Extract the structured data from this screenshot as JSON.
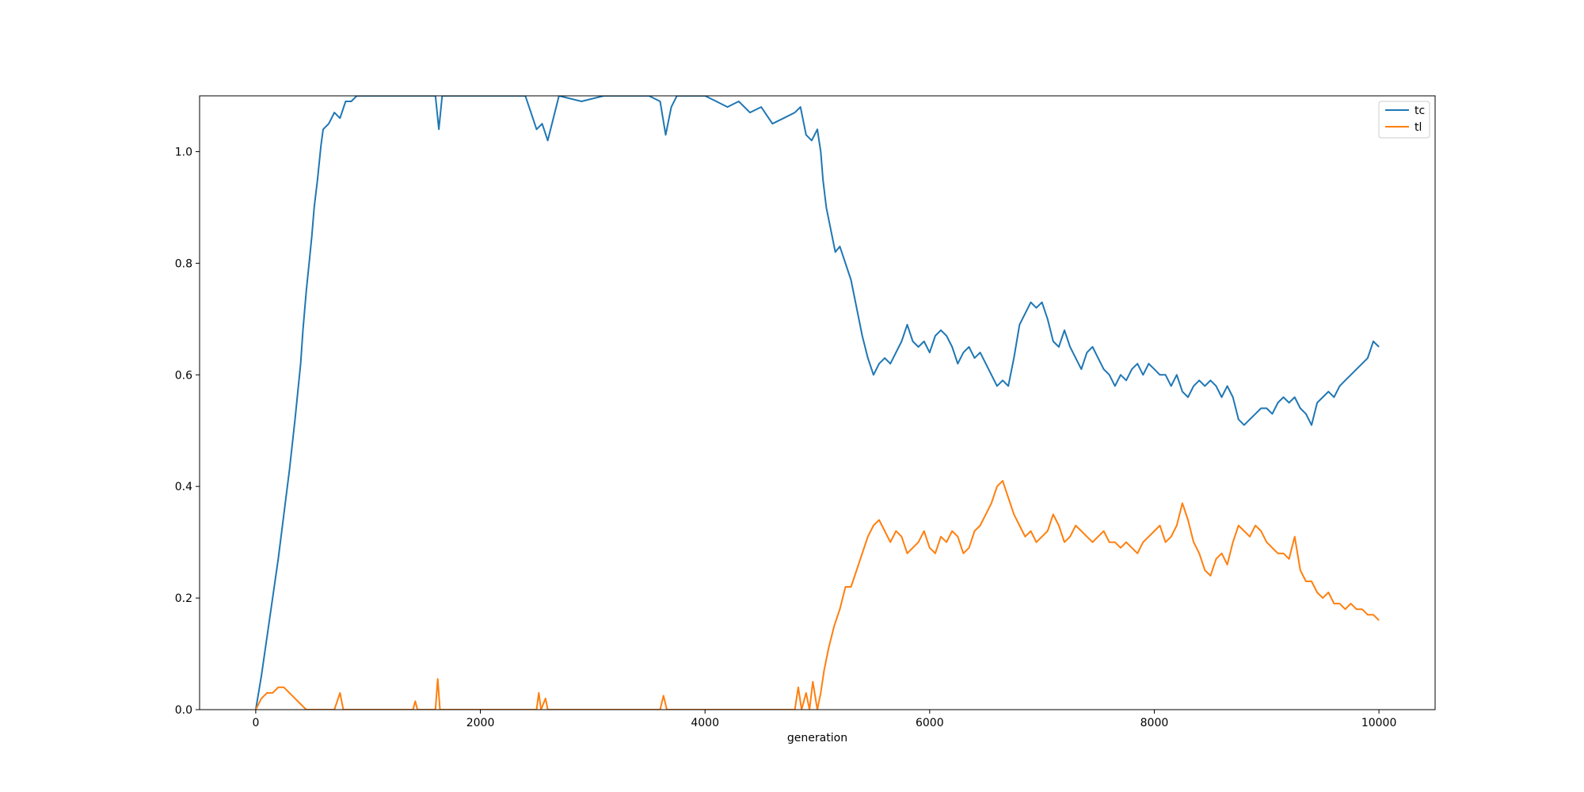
{
  "chart_data": {
    "type": "line",
    "title": "",
    "xlabel": "generation",
    "ylabel": "",
    "xlim": [
      -500,
      10500
    ],
    "ylim": [
      0,
      1.1
    ],
    "xticks": [
      0,
      2000,
      4000,
      6000,
      8000,
      10000
    ],
    "yticks": [
      0.0,
      0.2,
      0.4,
      0.6,
      0.8,
      1.0
    ],
    "xtick_labels": [
      "0",
      "2000",
      "4000",
      "6000",
      "8000",
      "10000"
    ],
    "ytick_labels": [
      "0.0",
      "0.2",
      "0.4",
      "0.6",
      "0.8",
      "1.0"
    ],
    "grid": false,
    "legend_position": "top-right",
    "series": [
      {
        "name": "tc",
        "color": "#1f77b4",
        "points": [
          [
            0,
            0.0
          ],
          [
            50,
            0.06
          ],
          [
            100,
            0.13
          ],
          [
            150,
            0.2
          ],
          [
            200,
            0.27
          ],
          [
            250,
            0.35
          ],
          [
            300,
            0.43
          ],
          [
            350,
            0.52
          ],
          [
            400,
            0.62
          ],
          [
            420,
            0.68
          ],
          [
            450,
            0.75
          ],
          [
            480,
            0.81
          ],
          [
            500,
            0.85
          ],
          [
            520,
            0.9
          ],
          [
            550,
            0.95
          ],
          [
            580,
            1.01
          ],
          [
            600,
            1.04
          ],
          [
            650,
            1.05
          ],
          [
            700,
            1.07
          ],
          [
            750,
            1.06
          ],
          [
            800,
            1.09
          ],
          [
            850,
            1.09
          ],
          [
            900,
            1.1
          ],
          [
            1000,
            1.1
          ],
          [
            1200,
            1.1
          ],
          [
            1400,
            1.1
          ],
          [
            1600,
            1.1
          ],
          [
            1630,
            1.04
          ],
          [
            1660,
            1.1
          ],
          [
            1800,
            1.1
          ],
          [
            2000,
            1.1
          ],
          [
            2200,
            1.1
          ],
          [
            2400,
            1.1
          ],
          [
            2450,
            1.07
          ],
          [
            2500,
            1.04
          ],
          [
            2550,
            1.05
          ],
          [
            2600,
            1.02
          ],
          [
            2650,
            1.06
          ],
          [
            2700,
            1.1
          ],
          [
            2900,
            1.09
          ],
          [
            3100,
            1.1
          ],
          [
            3300,
            1.1
          ],
          [
            3500,
            1.1
          ],
          [
            3600,
            1.09
          ],
          [
            3650,
            1.03
          ],
          [
            3700,
            1.08
          ],
          [
            3750,
            1.1
          ],
          [
            3900,
            1.1
          ],
          [
            4000,
            1.1
          ],
          [
            4100,
            1.09
          ],
          [
            4200,
            1.08
          ],
          [
            4300,
            1.09
          ],
          [
            4400,
            1.07
          ],
          [
            4500,
            1.08
          ],
          [
            4600,
            1.05
          ],
          [
            4700,
            1.06
          ],
          [
            4800,
            1.07
          ],
          [
            4850,
            1.08
          ],
          [
            4900,
            1.03
          ],
          [
            4950,
            1.02
          ],
          [
            5000,
            1.04
          ],
          [
            5030,
            1.0
          ],
          [
            5050,
            0.95
          ],
          [
            5080,
            0.9
          ],
          [
            5120,
            0.86
          ],
          [
            5160,
            0.82
          ],
          [
            5200,
            0.83
          ],
          [
            5250,
            0.8
          ],
          [
            5300,
            0.77
          ],
          [
            5350,
            0.72
          ],
          [
            5400,
            0.67
          ],
          [
            5450,
            0.63
          ],
          [
            5500,
            0.6
          ],
          [
            5550,
            0.62
          ],
          [
            5600,
            0.63
          ],
          [
            5650,
            0.62
          ],
          [
            5700,
            0.64
          ],
          [
            5750,
            0.66
          ],
          [
            5800,
            0.69
          ],
          [
            5850,
            0.66
          ],
          [
            5900,
            0.65
          ],
          [
            5950,
            0.66
          ],
          [
            6000,
            0.64
          ],
          [
            6050,
            0.67
          ],
          [
            6100,
            0.68
          ],
          [
            6150,
            0.67
          ],
          [
            6200,
            0.65
          ],
          [
            6250,
            0.62
          ],
          [
            6300,
            0.64
          ],
          [
            6350,
            0.65
          ],
          [
            6400,
            0.63
          ],
          [
            6450,
            0.64
          ],
          [
            6500,
            0.62
          ],
          [
            6550,
            0.6
          ],
          [
            6600,
            0.58
          ],
          [
            6650,
            0.59
          ],
          [
            6700,
            0.58
          ],
          [
            6750,
            0.63
          ],
          [
            6800,
            0.69
          ],
          [
            6850,
            0.71
          ],
          [
            6900,
            0.73
          ],
          [
            6950,
            0.72
          ],
          [
            7000,
            0.73
          ],
          [
            7050,
            0.7
          ],
          [
            7100,
            0.66
          ],
          [
            7150,
            0.65
          ],
          [
            7200,
            0.68
          ],
          [
            7250,
            0.65
          ],
          [
            7300,
            0.63
          ],
          [
            7350,
            0.61
          ],
          [
            7400,
            0.64
          ],
          [
            7450,
            0.65
          ],
          [
            7500,
            0.63
          ],
          [
            7550,
            0.61
          ],
          [
            7600,
            0.6
          ],
          [
            7650,
            0.58
          ],
          [
            7700,
            0.6
          ],
          [
            7750,
            0.59
          ],
          [
            7800,
            0.61
          ],
          [
            7850,
            0.62
          ],
          [
            7900,
            0.6
          ],
          [
            7950,
            0.62
          ],
          [
            8000,
            0.61
          ],
          [
            8050,
            0.6
          ],
          [
            8100,
            0.6
          ],
          [
            8150,
            0.58
          ],
          [
            8200,
            0.6
          ],
          [
            8250,
            0.57
          ],
          [
            8300,
            0.56
          ],
          [
            8350,
            0.58
          ],
          [
            8400,
            0.59
          ],
          [
            8450,
            0.58
          ],
          [
            8500,
            0.59
          ],
          [
            8550,
            0.58
          ],
          [
            8600,
            0.56
          ],
          [
            8650,
            0.58
          ],
          [
            8700,
            0.56
          ],
          [
            8750,
            0.52
          ],
          [
            8800,
            0.51
          ],
          [
            8850,
            0.52
          ],
          [
            8900,
            0.53
          ],
          [
            8950,
            0.54
          ],
          [
            9000,
            0.54
          ],
          [
            9050,
            0.53
          ],
          [
            9100,
            0.55
          ],
          [
            9150,
            0.56
          ],
          [
            9200,
            0.55
          ],
          [
            9250,
            0.56
          ],
          [
            9300,
            0.54
          ],
          [
            9350,
            0.53
          ],
          [
            9400,
            0.51
          ],
          [
            9450,
            0.55
          ],
          [
            9500,
            0.56
          ],
          [
            9550,
            0.57
          ],
          [
            9600,
            0.56
          ],
          [
            9650,
            0.58
          ],
          [
            9700,
            0.59
          ],
          [
            9750,
            0.6
          ],
          [
            9800,
            0.61
          ],
          [
            9850,
            0.62
          ],
          [
            9900,
            0.63
          ],
          [
            9950,
            0.66
          ],
          [
            10000,
            0.65
          ]
        ]
      },
      {
        "name": "tl",
        "color": "#ff7f0e",
        "points": [
          [
            0,
            0.0
          ],
          [
            50,
            0.02
          ],
          [
            100,
            0.03
          ],
          [
            150,
            0.03
          ],
          [
            200,
            0.04
          ],
          [
            250,
            0.04
          ],
          [
            300,
            0.03
          ],
          [
            350,
            0.02
          ],
          [
            400,
            0.01
          ],
          [
            450,
            0.0
          ],
          [
            600,
            0.0
          ],
          [
            700,
            0.0
          ],
          [
            750,
            0.03
          ],
          [
            780,
            0.0
          ],
          [
            1000,
            0.0
          ],
          [
            1400,
            0.0
          ],
          [
            1420,
            0.015
          ],
          [
            1440,
            0.0
          ],
          [
            1600,
            0.0
          ],
          [
            1620,
            0.055
          ],
          [
            1640,
            0.0
          ],
          [
            2000,
            0.0
          ],
          [
            2500,
            0.0
          ],
          [
            2520,
            0.03
          ],
          [
            2540,
            0.0
          ],
          [
            2580,
            0.02
          ],
          [
            2600,
            0.0
          ],
          [
            3600,
            0.0
          ],
          [
            3630,
            0.025
          ],
          [
            3660,
            0.0
          ],
          [
            4800,
            0.0
          ],
          [
            4830,
            0.04
          ],
          [
            4860,
            0.0
          ],
          [
            4900,
            0.03
          ],
          [
            4930,
            0.0
          ],
          [
            4960,
            0.05
          ],
          [
            5000,
            0.0
          ],
          [
            5030,
            0.03
          ],
          [
            5060,
            0.07
          ],
          [
            5100,
            0.11
          ],
          [
            5150,
            0.15
          ],
          [
            5200,
            0.18
          ],
          [
            5250,
            0.22
          ],
          [
            5300,
            0.22
          ],
          [
            5350,
            0.25
          ],
          [
            5400,
            0.28
          ],
          [
            5450,
            0.31
          ],
          [
            5500,
            0.33
          ],
          [
            5550,
            0.34
          ],
          [
            5600,
            0.32
          ],
          [
            5650,
            0.3
          ],
          [
            5700,
            0.32
          ],
          [
            5750,
            0.31
          ],
          [
            5800,
            0.28
          ],
          [
            5850,
            0.29
          ],
          [
            5900,
            0.3
          ],
          [
            5950,
            0.32
          ],
          [
            6000,
            0.29
          ],
          [
            6050,
            0.28
          ],
          [
            6100,
            0.31
          ],
          [
            6150,
            0.3
          ],
          [
            6200,
            0.32
          ],
          [
            6250,
            0.31
          ],
          [
            6300,
            0.28
          ],
          [
            6350,
            0.29
          ],
          [
            6400,
            0.32
          ],
          [
            6450,
            0.33
          ],
          [
            6500,
            0.35
          ],
          [
            6550,
            0.37
          ],
          [
            6600,
            0.4
          ],
          [
            6650,
            0.41
          ],
          [
            6700,
            0.38
          ],
          [
            6750,
            0.35
          ],
          [
            6800,
            0.33
          ],
          [
            6850,
            0.31
          ],
          [
            6900,
            0.32
          ],
          [
            6950,
            0.3
          ],
          [
            7000,
            0.31
          ],
          [
            7050,
            0.32
          ],
          [
            7100,
            0.35
          ],
          [
            7150,
            0.33
          ],
          [
            7200,
            0.3
          ],
          [
            7250,
            0.31
          ],
          [
            7300,
            0.33
          ],
          [
            7350,
            0.32
          ],
          [
            7400,
            0.31
          ],
          [
            7450,
            0.3
          ],
          [
            7500,
            0.31
          ],
          [
            7550,
            0.32
          ],
          [
            7600,
            0.3
          ],
          [
            7650,
            0.3
          ],
          [
            7700,
            0.29
          ],
          [
            7750,
            0.3
          ],
          [
            7800,
            0.29
          ],
          [
            7850,
            0.28
          ],
          [
            7900,
            0.3
          ],
          [
            7950,
            0.31
          ],
          [
            8000,
            0.32
          ],
          [
            8050,
            0.33
          ],
          [
            8100,
            0.3
          ],
          [
            8150,
            0.31
          ],
          [
            8200,
            0.33
          ],
          [
            8250,
            0.37
          ],
          [
            8300,
            0.34
          ],
          [
            8350,
            0.3
          ],
          [
            8400,
            0.28
          ],
          [
            8450,
            0.25
          ],
          [
            8500,
            0.24
          ],
          [
            8550,
            0.27
          ],
          [
            8600,
            0.28
          ],
          [
            8650,
            0.26
          ],
          [
            8700,
            0.3
          ],
          [
            8750,
            0.33
          ],
          [
            8800,
            0.32
          ],
          [
            8850,
            0.31
          ],
          [
            8900,
            0.33
          ],
          [
            8950,
            0.32
          ],
          [
            9000,
            0.3
          ],
          [
            9050,
            0.29
          ],
          [
            9100,
            0.28
          ],
          [
            9150,
            0.28
          ],
          [
            9200,
            0.27
          ],
          [
            9250,
            0.31
          ],
          [
            9300,
            0.25
          ],
          [
            9350,
            0.23
          ],
          [
            9400,
            0.23
          ],
          [
            9450,
            0.21
          ],
          [
            9500,
            0.2
          ],
          [
            9550,
            0.21
          ],
          [
            9600,
            0.19
          ],
          [
            9650,
            0.19
          ],
          [
            9700,
            0.18
          ],
          [
            9750,
            0.19
          ],
          [
            9800,
            0.18
          ],
          [
            9850,
            0.18
          ],
          [
            9900,
            0.17
          ],
          [
            9950,
            0.17
          ],
          [
            10000,
            0.16
          ]
        ]
      }
    ]
  }
}
